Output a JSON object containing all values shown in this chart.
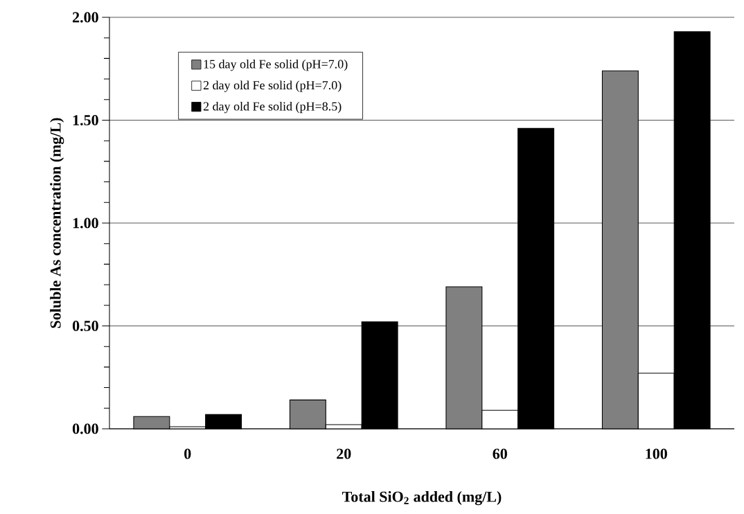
{
  "chart_data": {
    "type": "bar",
    "xlabel": "Total SiO$_{2}$ added (mg/L)",
    "ylabel": "Soluble As concentration (mg/L)",
    "categories": [
      "0",
      "20",
      "60",
      "100"
    ],
    "series": [
      {
        "name": "15 day old Fe solid (pH=7.0)",
        "color": "#808080",
        "values": [
          0.06,
          0.14,
          0.69,
          1.74
        ]
      },
      {
        "name": "2 day old Fe solid (pH=7.0)",
        "color": "#ffffff",
        "values": [
          0.01,
          0.02,
          0.09,
          0.27
        ]
      },
      {
        "name": "2 day old Fe solid (pH=8.5)",
        "color": "#000000",
        "values": [
          0.07,
          0.52,
          1.46,
          1.93
        ]
      }
    ],
    "ylim": [
      0,
      2
    ],
    "yticks": [
      {
        "value": 0,
        "label": "0.00"
      },
      {
        "value": 0.5,
        "label": "0.50"
      },
      {
        "value": 1,
        "label": "1.00"
      },
      {
        "value": 1.5,
        "label": "1.50"
      },
      {
        "value": 2,
        "label": "2.00"
      }
    ],
    "grid": "y",
    "legend": "top left"
  }
}
